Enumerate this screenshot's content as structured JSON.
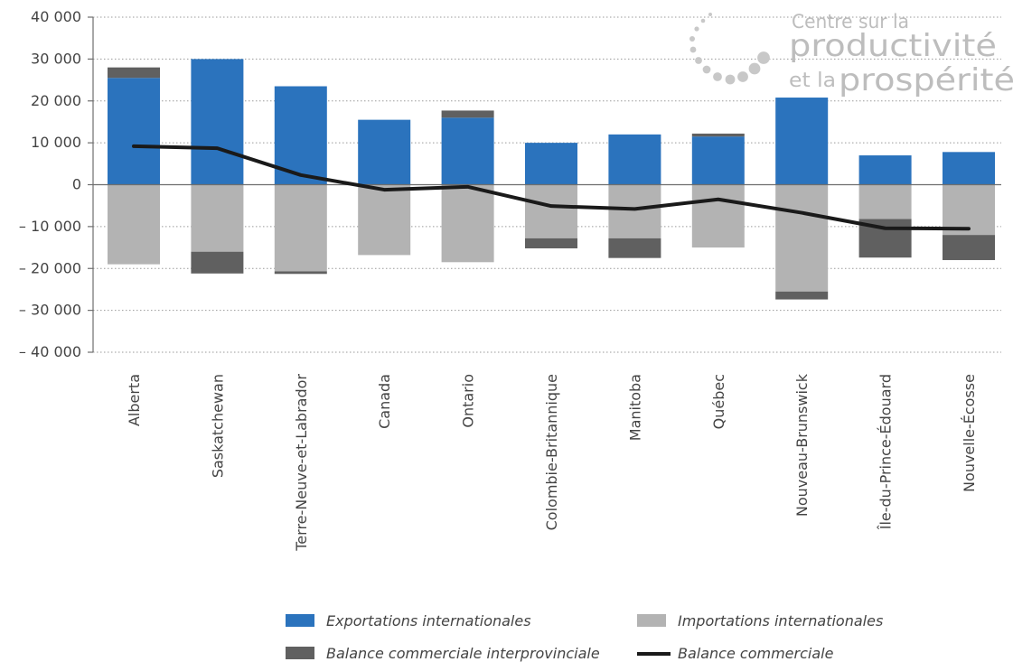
{
  "chart_data": {
    "type": "bar",
    "categories": [
      "Alberta",
      "Saskatchewan",
      "Terre-Neuve-et-Labrador",
      "Canada",
      "Ontario",
      "Colombie-Britannique",
      "Manitoba",
      "Québec",
      "Nouveau-Brunswick",
      "Île-du-Prince-Édouard",
      "Nouvelle-Écosse"
    ],
    "series": [
      {
        "name": "Exportations internationales",
        "values": [
          25500,
          30000,
          23500,
          15500,
          16000,
          10000,
          12000,
          11500,
          20800,
          7000,
          7800
        ]
      },
      {
        "name": "Importations internationales",
        "values": [
          -19000,
          -16000,
          -20700,
          -16800,
          -18500,
          -12800,
          -12800,
          -15000,
          -25500,
          -8200,
          -12000
        ]
      },
      {
        "name": "Balance commerciale interprovinciale",
        "values": [
          2500,
          -5200,
          -600,
          0,
          1700,
          -2400,
          -4700,
          700,
          -1900,
          -9200,
          -6000
        ]
      },
      {
        "name": "Balance commerciale",
        "values": [
          9200,
          8700,
          2300,
          -1200,
          -500,
          -5100,
          -5800,
          -3500,
          -6700,
          -10400,
          -10500
        ]
      }
    ],
    "colors": {
      "exportations": "#2b73bd",
      "importations": "#b3b3b3",
      "interprovinciale": "#606060",
      "balance": "#1a1a1a",
      "grid": "#9a9a9a",
      "axis": "#6e6e6e"
    },
    "ylim": [
      -40000,
      40000
    ],
    "yticks": [
      40000,
      30000,
      20000,
      10000,
      0,
      -10000,
      -20000,
      -30000,
      -40000
    ],
    "ytick_labels": [
      "40 000",
      "30 000",
      "20 000",
      "10 000",
      "0",
      "– 10 000",
      "– 20 000",
      "– 30 000",
      "– 40 000"
    ],
    "grid": true,
    "legend_position": "bottom"
  },
  "logo": {
    "line1": "Centre sur la",
    "line2": "productivité",
    "line3_small": "et la",
    "line3_big": "prospérité"
  }
}
